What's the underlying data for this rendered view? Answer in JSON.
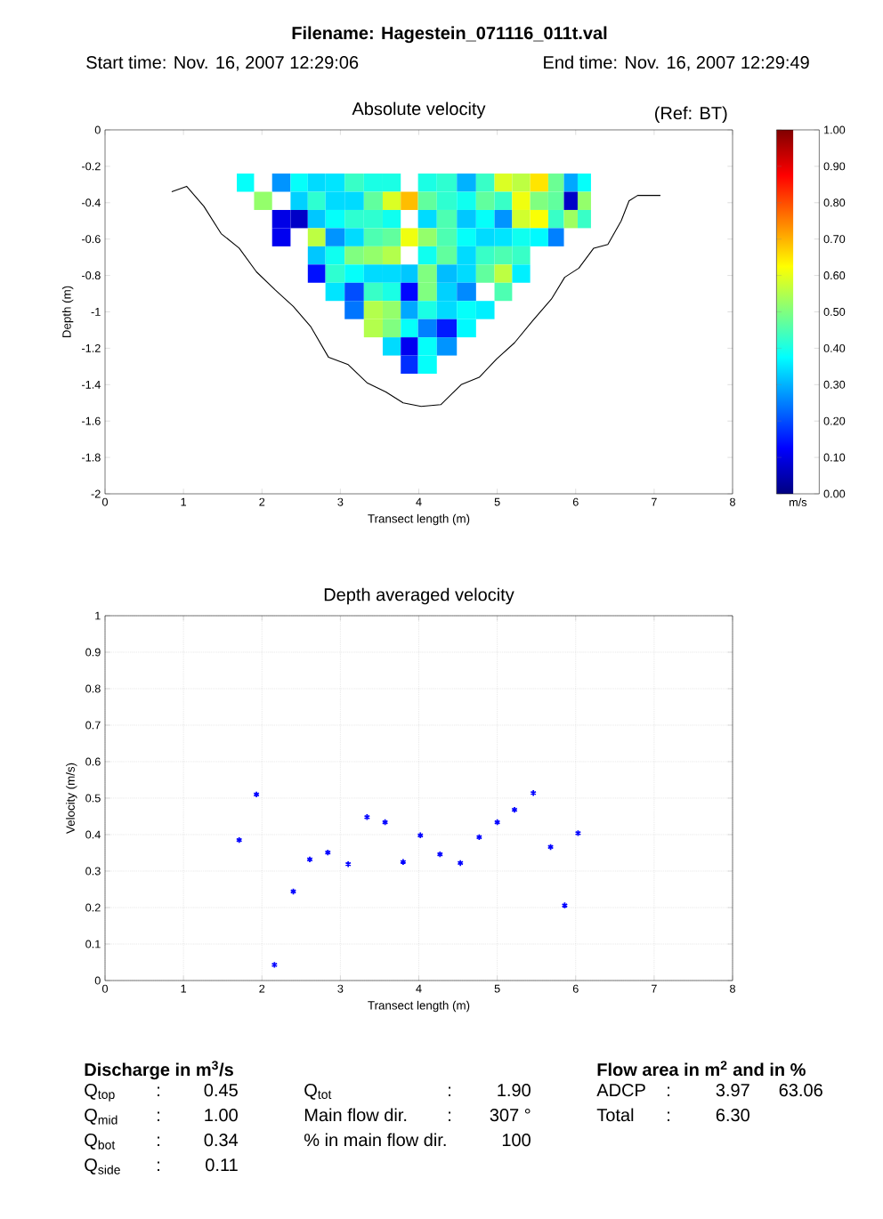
{
  "chart_data": [
    {
      "type": "heatmap",
      "title": "Absolute velocity",
      "xlabel": "Transect length (m)",
      "ylabel": "Depth (m)",
      "clabel": "m/s",
      "annotations": [
        "Filename:  Hagestein_071116_011t.val",
        "Start time: Nov. 16, 2007 12:29:06",
        "End time: Nov. 16, 2007 12:29:49",
        "(Ref: BT)"
      ],
      "xlim": [
        0,
        8
      ],
      "ylim": [
        -2,
        0
      ],
      "xticks": [
        0,
        1,
        2,
        3,
        4,
        5,
        6,
        7,
        8
      ],
      "yticks": [
        -2,
        -1.8,
        -1.6,
        -1.4,
        -1.2,
        -1,
        -0.8,
        -0.6,
        -0.4,
        -0.2,
        0
      ],
      "clim": [
        0,
        1
      ],
      "cticks": [
        {
          "value": 0,
          "label": "0.00"
        },
        {
          "value": 0.1,
          "label": "0.10"
        },
        {
          "value": 0.2,
          "label": "0.20"
        },
        {
          "value": 0.3,
          "label": "0.30"
        },
        {
          "value": 0.4,
          "label": "0.40"
        },
        {
          "value": 0.5,
          "label": "0.50"
        },
        {
          "value": 0.6,
          "label": "0.60"
        },
        {
          "value": 0.7,
          "label": "0.70"
        },
        {
          "value": 0.8,
          "label": "0.80"
        },
        {
          "value": 0.9,
          "label": "0.90"
        },
        {
          "value": 1,
          "label": "1.00"
        }
      ],
      "x": [
        1.79,
        2.01,
        2.25,
        2.48,
        2.69,
        2.93,
        3.18,
        3.42,
        3.66,
        3.88,
        4.1,
        4.36,
        4.61,
        4.85,
        5.08,
        5.3,
        5.54,
        5.76,
        5.94,
        6.11
      ],
      "y": [
        -0.29,
        -0.39,
        -0.49,
        -0.59,
        -0.69,
        -0.79,
        -0.89,
        -0.99,
        -1.09,
        -1.19,
        -1.29
      ],
      "cells": [
        [
          0.38,
          null,
          0.27,
          0.38,
          0.34,
          0.35,
          0.43,
          0.4,
          0.4,
          null,
          0.4,
          0.42,
          0.3,
          0.43,
          0.59,
          0.56,
          0.65,
          0.48,
          0.29,
          0.38
        ],
        [
          null,
          0.52,
          null,
          0.33,
          0.42,
          0.34,
          0.34,
          0.47,
          0.59,
          0.69,
          0.47,
          0.42,
          0.39,
          0.47,
          0.43,
          0.61,
          0.5,
          0.47,
          0.07,
          0.52
        ],
        [
          null,
          null,
          0.1,
          0.07,
          0.32,
          0.38,
          0.42,
          0.42,
          0.39,
          null,
          0.34,
          0.45,
          0.32,
          0.38,
          0.27,
          0.58,
          0.62,
          0.43,
          0.53,
          0.43
        ],
        [
          null,
          null,
          0.11,
          null,
          0.56,
          0.27,
          0.34,
          0.45,
          0.47,
          0.61,
          0.52,
          0.45,
          0.38,
          0.34,
          0.35,
          0.39,
          0.37,
          0.25,
          null,
          null
        ],
        [
          null,
          null,
          null,
          null,
          0.32,
          0.39,
          0.5,
          0.52,
          0.55,
          null,
          0.39,
          0.47,
          0.34,
          0.43,
          0.45,
          0.43,
          null,
          null,
          null,
          null
        ],
        [
          null,
          null,
          null,
          null,
          0.14,
          0.42,
          0.38,
          0.34,
          0.34,
          0.32,
          0.5,
          0.31,
          0.34,
          0.47,
          0.56,
          0.36,
          null,
          null,
          null,
          null
        ],
        [
          null,
          null,
          null,
          null,
          null,
          0.35,
          0.2,
          0.43,
          0.4,
          0.13,
          0.5,
          0.33,
          0.26,
          null,
          0.45,
          null,
          null,
          null,
          null,
          null
        ],
        [
          null,
          null,
          null,
          null,
          null,
          null,
          0.24,
          0.55,
          0.52,
          0.29,
          0.4,
          0.34,
          0.38,
          0.36,
          null,
          null,
          null,
          null,
          null,
          null
        ],
        [
          null,
          null,
          null,
          null,
          null,
          null,
          null,
          0.55,
          0.5,
          0.38,
          0.25,
          0.15,
          0.37,
          null,
          null,
          null,
          null,
          null,
          null,
          null
        ],
        [
          null,
          null,
          null,
          null,
          null,
          null,
          null,
          null,
          0.34,
          0.11,
          0.38,
          0.27,
          null,
          null,
          null,
          null,
          null,
          null,
          null,
          null
        ],
        [
          null,
          null,
          null,
          null,
          null,
          null,
          null,
          null,
          null,
          0.17,
          0.38,
          null,
          null,
          null,
          null,
          null,
          null,
          null,
          null,
          null
        ]
      ],
      "series": [
        {
          "type": "line",
          "color": "#000000",
          "x": [
            0.85,
            1.04,
            1.26,
            1.48,
            1.71,
            1.93,
            2.17,
            2.4,
            2.62,
            2.85,
            3.1,
            3.34,
            3.58,
            3.8,
            4.03,
            4.28,
            4.54,
            4.77,
            4.99,
            5.22,
            5.45,
            5.69,
            5.86,
            6.04,
            6.23,
            6.41,
            6.58,
            6.68,
            6.79,
            7.08
          ],
          "values": [
            -0.34,
            -0.31,
            -0.42,
            -0.57,
            -0.65,
            -0.78,
            -0.88,
            -0.97,
            -1.08,
            -1.25,
            -1.29,
            -1.39,
            -1.44,
            -1.5,
            -1.52,
            -1.51,
            -1.4,
            -1.36,
            -1.26,
            -1.17,
            -1.05,
            -0.93,
            -0.81,
            -0.76,
            -0.65,
            -0.63,
            -0.5,
            -0.39,
            -0.36,
            -0.36
          ]
        }
      ]
    },
    {
      "type": "scatter",
      "title": "Depth averaged velocity",
      "xlabel": "Transect length (m)",
      "ylabel": "Velocity (m/s)",
      "xlim": [
        0,
        8
      ],
      "ylim": [
        0,
        1
      ],
      "xticks": [
        0,
        1,
        2,
        3,
        4,
        5,
        6,
        7,
        8
      ],
      "yticks": [
        0,
        0.1,
        0.2,
        0.3,
        0.4,
        0.5,
        0.6,
        0.7,
        0.8,
        0.9,
        1
      ],
      "grid": true,
      "marker": "cross",
      "color": "#0000ff",
      "x": [
        1.71,
        1.93,
        2.16,
        2.4,
        2.61,
        2.84,
        3.1,
        3.34,
        3.57,
        3.8,
        4.02,
        4.27,
        4.53,
        4.77,
        5.0,
        5.22,
        5.46,
        5.68,
        5.86,
        6.03
      ],
      "values": [
        0.385,
        0.51,
        0.043,
        0.244,
        0.332,
        0.351,
        0.319,
        0.448,
        0.434,
        0.325,
        0.398,
        0.346,
        0.322,
        0.393,
        0.434,
        0.468,
        0.514,
        0.366,
        0.206,
        0.404
      ],
      "annotations": [
        "Discharge in m$^{3}$/s",
        "Q$_{top}$",
        ":",
        "0.45",
        "Q$_{mid}$",
        ":",
        "1.00",
        "Q$_{bot}$",
        ":",
        "0.34",
        "Q$_{side}$",
        ":",
        "0.11",
        "Q$_{tot}$",
        ":",
        "1.90",
        "Main flow dir.",
        ":",
        "307 °",
        "% in main flow dir.",
        "100",
        "Flow area in m$^{2}$ and in %",
        "ADCP",
        ":",
        "3.97",
        "63.06",
        "Total",
        ":",
        "6.30"
      ]
    }
  ]
}
